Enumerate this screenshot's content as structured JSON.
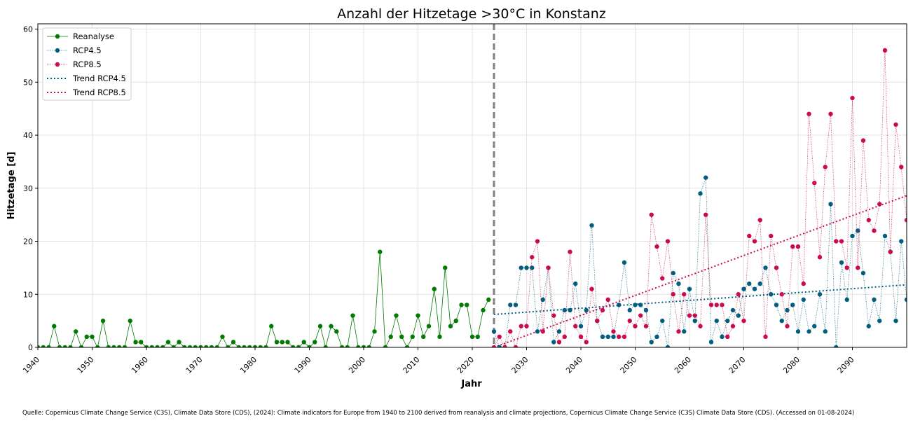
{
  "chart_data": {
    "type": "line",
    "title": "Anzahl der Hitzetage >30°C in Konstanz",
    "xlabel": "Jahr",
    "ylabel": "Hitzetage [d]",
    "xlim": [
      1940,
      2100
    ],
    "ylim": [
      0,
      61
    ],
    "xticks": [
      1940,
      1950,
      1960,
      1970,
      1980,
      1990,
      2000,
      2010,
      2020,
      2030,
      2040,
      2050,
      2060,
      2070,
      2080,
      2090
    ],
    "yticks": [
      0,
      10,
      20,
      30,
      40,
      50,
      60
    ],
    "grid": true,
    "legend_position": "top-left",
    "vline": {
      "x": 2024,
      "style": "dashed",
      "color": "#808080"
    },
    "colors": {
      "reanalyse": "#007a00",
      "rcp45": "#005f7f",
      "rcp85": "#cc0a4f",
      "vline": "#808080",
      "grid": "#e3e3e3"
    },
    "series": [
      {
        "name": "Reanalyse",
        "key": "reanalyse",
        "style": "solid-marker",
        "x_start": 1940,
        "values": [
          0,
          0,
          0,
          4,
          0,
          0,
          0,
          3,
          0,
          2,
          2,
          0,
          5,
          0,
          0,
          0,
          0,
          5,
          1,
          1,
          0,
          0,
          0,
          0,
          1,
          0,
          1,
          0,
          0,
          0,
          0,
          0,
          0,
          0,
          2,
          0,
          1,
          0,
          0,
          0,
          0,
          0,
          0,
          4,
          1,
          1,
          1,
          0,
          0,
          1,
          0,
          1,
          4,
          0,
          4,
          3,
          0,
          0,
          6,
          0,
          0,
          0,
          3,
          18,
          0,
          2,
          6,
          2,
          0,
          2,
          6,
          2,
          4,
          11,
          2,
          15,
          4,
          5,
          8,
          8,
          2,
          2,
          7,
          9
        ]
      },
      {
        "name": "RCP4.5",
        "key": "rcp45",
        "style": "dotted-marker",
        "x_start": 2024,
        "values": [
          3,
          0,
          0,
          8,
          8,
          15,
          15,
          15,
          3,
          9,
          15,
          1,
          3,
          7,
          7,
          12,
          4,
          7,
          23,
          5,
          2,
          2,
          2,
          8,
          16,
          7,
          8,
          8,
          7,
          1,
          2,
          5,
          0,
          14,
          12,
          3,
          11,
          5,
          29,
          32,
          1,
          5,
          2,
          5,
          7,
          6,
          11,
          12,
          11,
          12,
          15,
          10,
          8,
          5,
          7,
          8,
          3,
          9,
          3,
          4,
          10,
          3,
          27,
          0,
          16,
          9,
          21,
          22,
          14,
          4,
          9,
          5,
          21,
          18,
          5,
          20,
          9
        ]
      },
      {
        "name": "RCP8.5",
        "key": "rcp85",
        "style": "dotted-marker",
        "x_start": 2024,
        "values": [
          0,
          2,
          0,
          3,
          0,
          4,
          4,
          17,
          20,
          3,
          15,
          6,
          1,
          2,
          18,
          4,
          2,
          1,
          11,
          5,
          7,
          9,
          3,
          2,
          2,
          5,
          4,
          6,
          4,
          25,
          19,
          13,
          20,
          10,
          3,
          10,
          6,
          6,
          4,
          25,
          8,
          8,
          8,
          2,
          4,
          10,
          5,
          21,
          20,
          24,
          2,
          21,
          15,
          10,
          4,
          19,
          19,
          12,
          44,
          31,
          17,
          34,
          44,
          20,
          20,
          15,
          47,
          15,
          39,
          24,
          22,
          27,
          56,
          18,
          42,
          34,
          24
        ]
      },
      {
        "name": "Trend RCP4.5",
        "key": "rcp45",
        "style": "dotted-trend",
        "x": [
          2024,
          2100
        ],
        "values": [
          6.2,
          11.8
        ]
      },
      {
        "name": "Trend RCP8.5",
        "key": "rcp85",
        "style": "dotted-trend",
        "x": [
          2024,
          2100
        ],
        "values": [
          0.0,
          28.6
        ]
      }
    ],
    "source": "Quelle: Copernicus Climate Change Service (C3S), Climate Data Store (CDS), (2024): Climate indicators for Europe from 1940 to 2100 derived from reanalysis and climate projections, Copernicus Climate Change Service (C3S) Climate Data Store (CDS). (Accessed on 01-08-2024)"
  }
}
